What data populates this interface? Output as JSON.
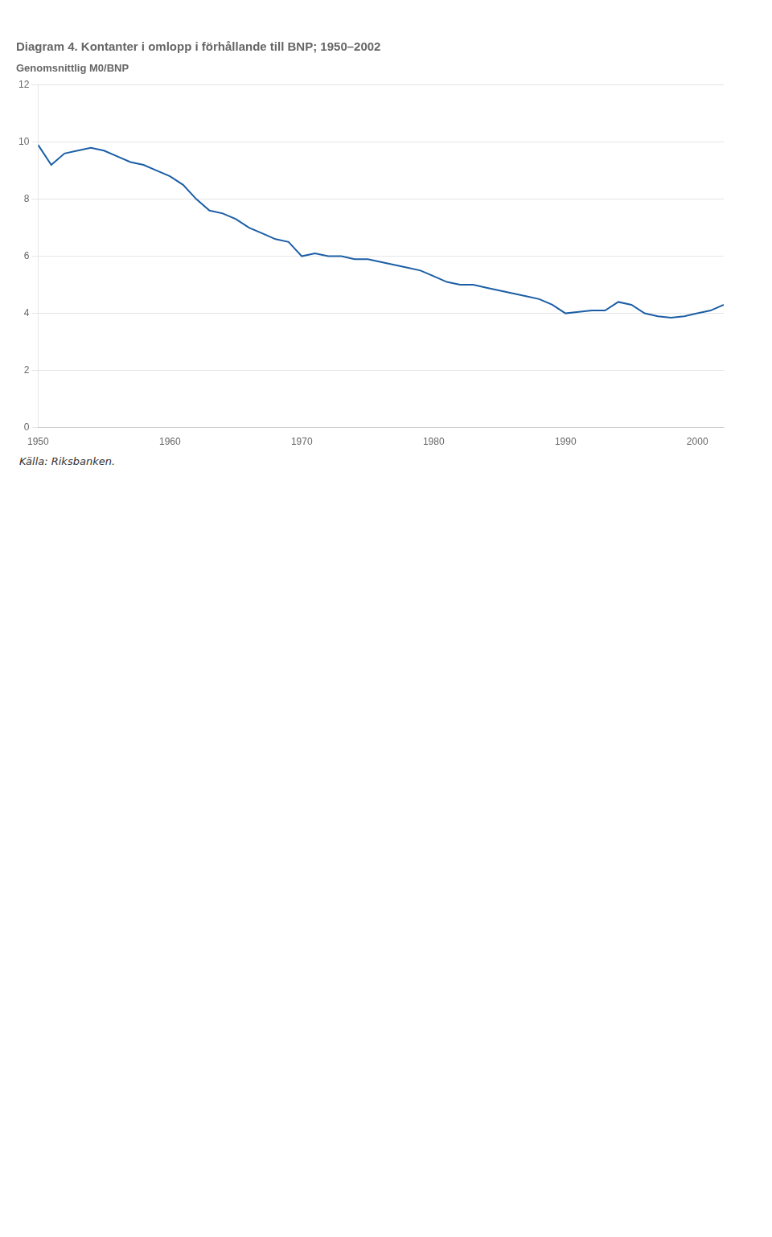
{
  "chart_data": {
    "type": "line",
    "title": "Diagram 4. Kontanter i omlopp i förhållande till BNP; 1950–2002",
    "subtitle": "Genomsnittlig M0/BNP",
    "source": "Källa: Riksbanken.",
    "color": "#1b5ea6",
    "x": [
      1950,
      1951,
      1952,
      1953,
      1954,
      1955,
      1956,
      1957,
      1958,
      1959,
      1960,
      1961,
      1962,
      1963,
      1964,
      1965,
      1966,
      1967,
      1968,
      1969,
      1970,
      1971,
      1972,
      1973,
      1974,
      1975,
      1976,
      1977,
      1978,
      1979,
      1980,
      1981,
      1982,
      1983,
      1984,
      1985,
      1986,
      1987,
      1988,
      1989,
      1990,
      1991,
      1992,
      1993,
      1994,
      1995,
      1996,
      1997,
      1998,
      1999,
      2000,
      2001,
      2002
    ],
    "values": [
      9.9,
      9.2,
      9.6,
      9.7,
      9.8,
      9.7,
      9.5,
      9.3,
      9.2,
      9.0,
      8.8,
      8.5,
      8.0,
      7.6,
      7.5,
      7.3,
      7.0,
      6.8,
      6.6,
      6.5,
      6.0,
      6.1,
      6.0,
      6.0,
      5.9,
      5.9,
      5.8,
      5.7,
      5.6,
      5.5,
      5.3,
      5.1,
      5.0,
      5.0,
      4.9,
      4.8,
      4.7,
      4.6,
      4.5,
      4.3,
      4.0,
      4.05,
      4.1,
      4.1,
      4.4,
      4.3,
      4.0,
      3.9,
      3.85,
      3.9,
      4.0,
      4.1,
      4.3
    ],
    "xlim": [
      1950,
      2002
    ],
    "xticks": [
      1950,
      1960,
      1970,
      1980,
      1990,
      2000
    ],
    "ylim": [
      0,
      12
    ],
    "yticks": [
      0,
      2,
      4,
      6,
      8,
      10,
      12
    ],
    "grid": true
  }
}
